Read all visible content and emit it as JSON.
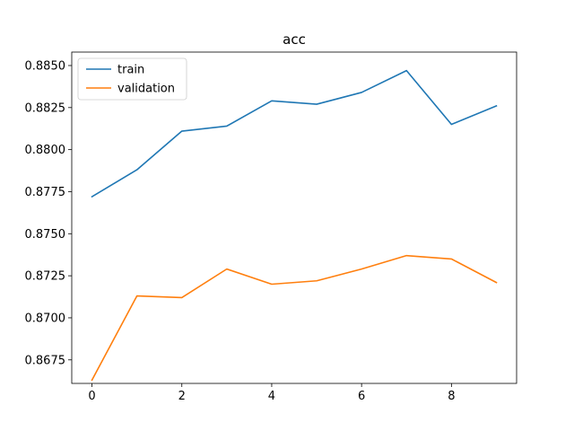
{
  "chart_data": {
    "type": "line",
    "title": "acc",
    "xlabel": "",
    "ylabel": "",
    "x": [
      0,
      1,
      2,
      3,
      4,
      5,
      6,
      7,
      8,
      9
    ],
    "xlim": [
      -0.45,
      9.45
    ],
    "ylim": [
      0.8661,
      0.8858
    ],
    "xticks": [
      0,
      2,
      4,
      6,
      8
    ],
    "yticks": [
      0.8675,
      0.87,
      0.8725,
      0.875,
      0.8775,
      0.88,
      0.8825,
      0.885
    ],
    "ytick_labels": [
      "0.8675",
      "0.8700",
      "0.8725",
      "0.8750",
      "0.8775",
      "0.8800",
      "0.8825",
      "0.8850"
    ],
    "grid": false,
    "legend_position": "upper-left",
    "series": [
      {
        "name": "train",
        "color": "#1f77b4",
        "values": [
          0.8772,
          0.8788,
          0.8811,
          0.8814,
          0.8829,
          0.8827,
          0.8834,
          0.8847,
          0.8815,
          0.8826
        ]
      },
      {
        "name": "validation",
        "color": "#ff7f0e",
        "values": [
          0.8663,
          0.8713,
          0.8712,
          0.8729,
          0.872,
          0.8722,
          0.8729,
          0.8737,
          0.8735,
          0.8721
        ]
      }
    ]
  }
}
